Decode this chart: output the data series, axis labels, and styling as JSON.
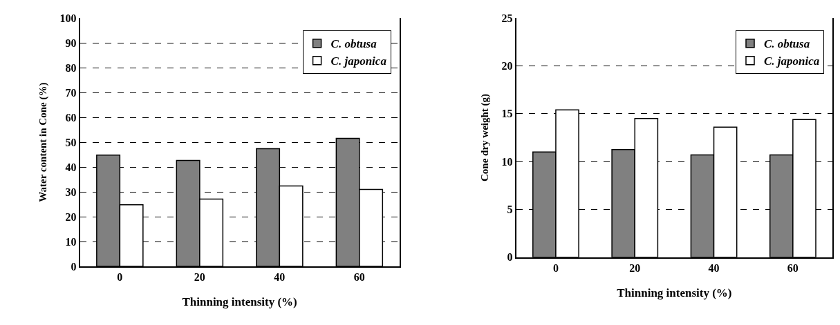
{
  "chart_data": [
    {
      "type": "bar",
      "xlabel": "Thinning intensity (%)",
      "ylabel": "Water content in Cone (%)",
      "categories": [
        "0",
        "20",
        "40",
        "60"
      ],
      "series": [
        {
          "name": "C. obtusa",
          "color": "#808080",
          "values": [
            44.8,
            42.7,
            47.4,
            51.6
          ]
        },
        {
          "name": "C. japonica",
          "color": "#ffffff",
          "values": [
            24.8,
            27.1,
            32.4,
            31.0
          ]
        }
      ],
      "ylim": [
        0,
        100
      ],
      "yticks": [
        0,
        10,
        20,
        30,
        40,
        50,
        60,
        70,
        80,
        90,
        100
      ],
      "grid": "y",
      "legend": "top right"
    },
    {
      "type": "bar",
      "xlabel": "Thinning intensity (%)",
      "ylabel": "Cone dry weight (g)",
      "categories": [
        "0",
        "20",
        "40",
        "60"
      ],
      "series": [
        {
          "name": "C. obtusa",
          "color": "#808080",
          "values": [
            11.0,
            11.25,
            10.7,
            10.7
          ]
        },
        {
          "name": "C. japonica",
          "color": "#ffffff",
          "values": [
            15.4,
            14.5,
            13.6,
            14.4
          ]
        }
      ],
      "ylim": [
        0,
        25
      ],
      "yticks": [
        0,
        5,
        10,
        15,
        20,
        25
      ],
      "grid": "y",
      "legend": "top right"
    }
  ]
}
